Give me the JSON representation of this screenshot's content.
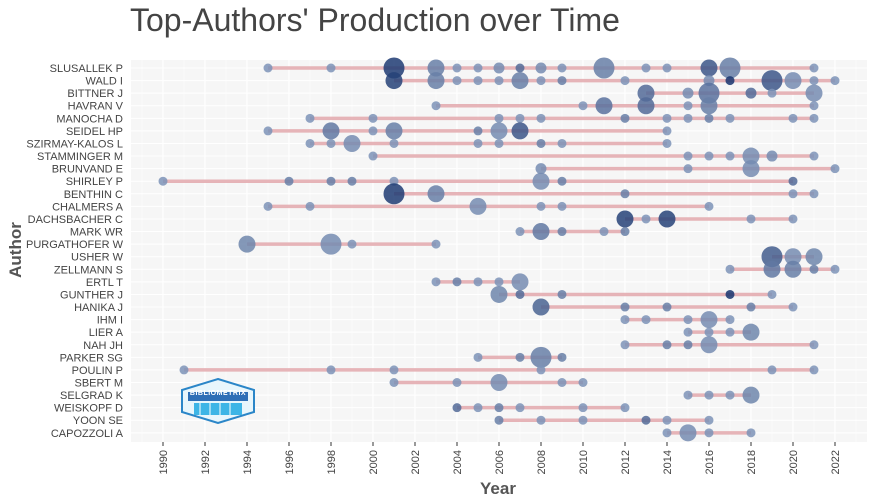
{
  "chart_data": {
    "type": "scatter",
    "title": "Top-Authors' Production over Time",
    "xlabel": "Year",
    "ylabel": "Author",
    "xlim": [
      1989,
      2023
    ],
    "xticks": [
      1990,
      1992,
      1994,
      1996,
      1998,
      2000,
      2002,
      2004,
      2006,
      2008,
      2010,
      2012,
      2014,
      2016,
      2018,
      2020,
      2022
    ],
    "grid": true,
    "line_color": "#e2a7ab",
    "point_color": "#5b7fae",
    "authors": [
      {
        "name": "SLUSALLEK P",
        "span": [
          1995,
          2021
        ],
        "points": [
          [
            1995,
            1,
            0.3
          ],
          [
            1998,
            1,
            0.3
          ],
          [
            2001,
            4,
            0.95
          ],
          [
            2003,
            3,
            0.45
          ],
          [
            2004,
            1,
            0.3
          ],
          [
            2005,
            1,
            0.3
          ],
          [
            2006,
            2,
            0.35
          ],
          [
            2007,
            1,
            0.6
          ],
          [
            2008,
            2,
            0.35
          ],
          [
            2009,
            1,
            0.3
          ],
          [
            2011,
            4,
            0.45
          ],
          [
            2013,
            1,
            0.3
          ],
          [
            2014,
            1,
            0.3
          ],
          [
            2016,
            3,
            0.75
          ],
          [
            2017,
            4,
            0.45
          ],
          [
            2021,
            1,
            0.3
          ]
        ]
      },
      {
        "name": "WALD I",
        "span": [
          2001,
          2022
        ],
        "points": [
          [
            2001,
            3,
            0.9
          ],
          [
            2003,
            3,
            0.45
          ],
          [
            2004,
            1,
            0.3
          ],
          [
            2005,
            1,
            0.3
          ],
          [
            2006,
            1,
            0.3
          ],
          [
            2007,
            3,
            0.45
          ],
          [
            2008,
            1,
            0.3
          ],
          [
            2009,
            1,
            0.45
          ],
          [
            2012,
            1,
            0.3
          ],
          [
            2016,
            2,
            0.35
          ],
          [
            2017,
            1,
            1.0
          ],
          [
            2019,
            4,
            0.75
          ],
          [
            2020,
            3,
            0.35
          ],
          [
            2021,
            1,
            0.3
          ],
          [
            2022,
            1,
            0.3
          ]
        ]
      },
      {
        "name": "BITTNER J",
        "span": [
          2013,
          2021
        ],
        "points": [
          [
            2013,
            3,
            0.6
          ],
          [
            2015,
            2,
            0.35
          ],
          [
            2016,
            4,
            0.55
          ],
          [
            2018,
            2,
            0.6
          ],
          [
            2019,
            1,
            0.3
          ],
          [
            2021,
            3,
            0.35
          ]
        ]
      },
      {
        "name": "HAVRAN V",
        "span": [
          2003,
          2021
        ],
        "points": [
          [
            2003,
            1,
            0.3
          ],
          [
            2010,
            1,
            0.3
          ],
          [
            2011,
            3,
            0.55
          ],
          [
            2013,
            3,
            0.6
          ],
          [
            2015,
            1,
            0.3
          ],
          [
            2016,
            3,
            0.45
          ],
          [
            2021,
            1,
            0.3
          ]
        ]
      },
      {
        "name": "MANOCHA D",
        "span": [
          1997,
          2021
        ],
        "points": [
          [
            1997,
            1,
            0.3
          ],
          [
            2000,
            1,
            0.3
          ],
          [
            2006,
            1,
            0.3
          ],
          [
            2007,
            1,
            0.3
          ],
          [
            2008,
            1,
            0.3
          ],
          [
            2012,
            1,
            0.45
          ],
          [
            2014,
            1,
            0.3
          ],
          [
            2015,
            1,
            0.3
          ],
          [
            2016,
            1,
            0.45
          ],
          [
            2017,
            1,
            0.3
          ],
          [
            2020,
            1,
            0.3
          ],
          [
            2021,
            1,
            0.3
          ]
        ]
      },
      {
        "name": "SEIDEL HP",
        "span": [
          1995,
          2014
        ],
        "points": [
          [
            1995,
            1,
            0.3
          ],
          [
            1998,
            3,
            0.5
          ],
          [
            2000,
            1,
            0.3
          ],
          [
            2001,
            3,
            0.45
          ],
          [
            2005,
            1,
            0.45
          ],
          [
            2006,
            3,
            0.35
          ],
          [
            2007,
            3,
            0.75
          ],
          [
            2014,
            1,
            0.3
          ]
        ]
      },
      {
        "name": "SZIRMAY-KALOS L",
        "span": [
          1997,
          2014
        ],
        "points": [
          [
            1997,
            1,
            0.3
          ],
          [
            1998,
            1,
            0.3
          ],
          [
            1999,
            3,
            0.35
          ],
          [
            2001,
            1,
            0.3
          ],
          [
            2005,
            1,
            0.3
          ],
          [
            2006,
            1,
            0.3
          ],
          [
            2008,
            1,
            0.45
          ],
          [
            2009,
            1,
            0.3
          ],
          [
            2014,
            1,
            0.3
          ]
        ]
      },
      {
        "name": "STAMMINGER M",
        "span": [
          2000,
          2021
        ],
        "points": [
          [
            2000,
            1,
            0.3
          ],
          [
            2015,
            1,
            0.3
          ],
          [
            2016,
            1,
            0.3
          ],
          [
            2017,
            1,
            0.3
          ],
          [
            2018,
            3,
            0.35
          ],
          [
            2019,
            2,
            0.35
          ],
          [
            2021,
            1,
            0.3
          ]
        ]
      },
      {
        "name": "BRUNVAND E",
        "span": [
          2008,
          2022
        ],
        "points": [
          [
            2008,
            2,
            0.35
          ],
          [
            2015,
            1,
            0.3
          ],
          [
            2018,
            3,
            0.35
          ],
          [
            2022,
            1,
            0.3
          ]
        ]
      },
      {
        "name": "SHIRLEY P",
        "span": [
          1990,
          2020
        ],
        "points": [
          [
            1990,
            1,
            0.3
          ],
          [
            1996,
            1,
            0.45
          ],
          [
            1998,
            1,
            0.45
          ],
          [
            1999,
            1,
            0.45
          ],
          [
            2001,
            1,
            0.3
          ],
          [
            2008,
            3,
            0.35
          ],
          [
            2009,
            1,
            0.45
          ],
          [
            2020,
            1,
            0.6
          ]
        ]
      },
      {
        "name": "BENTHIN C",
        "span": [
          2001,
          2021
        ],
        "points": [
          [
            2001,
            4,
            0.95
          ],
          [
            2003,
            3,
            0.45
          ],
          [
            2012,
            1,
            0.45
          ],
          [
            2020,
            1,
            0.3
          ],
          [
            2021,
            1,
            0.3
          ]
        ]
      },
      {
        "name": "CHALMERS A",
        "span": [
          1995,
          2016
        ],
        "points": [
          [
            1995,
            1,
            0.3
          ],
          [
            1997,
            1,
            0.3
          ],
          [
            2005,
            3,
            0.35
          ],
          [
            2008,
            1,
            0.3
          ],
          [
            2009,
            1,
            0.3
          ],
          [
            2016,
            1,
            0.3
          ]
        ]
      },
      {
        "name": "DACHSBACHER C",
        "span": [
          2012,
          2020
        ],
        "points": [
          [
            2012,
            3,
            0.9
          ],
          [
            2013,
            1,
            0.3
          ],
          [
            2014,
            3,
            0.9
          ],
          [
            2018,
            1,
            0.3
          ],
          [
            2020,
            1,
            0.3
          ]
        ]
      },
      {
        "name": "MARK WR",
        "span": [
          2007,
          2012
        ],
        "points": [
          [
            2007,
            1,
            0.3
          ],
          [
            2008,
            3,
            0.5
          ],
          [
            2009,
            1,
            0.45
          ],
          [
            2011,
            1,
            0.3
          ],
          [
            2012,
            1,
            0.45
          ]
        ]
      },
      {
        "name": "PURGATHOFER W",
        "span": [
          1994,
          2003
        ],
        "points": [
          [
            1994,
            3,
            0.4
          ],
          [
            1998,
            4,
            0.35
          ],
          [
            1999,
            1,
            0.3
          ],
          [
            2003,
            1,
            0.3
          ]
        ]
      },
      {
        "name": "USHER W",
        "span": [
          2019,
          2021
        ],
        "points": [
          [
            2019,
            4,
            0.7
          ],
          [
            2020,
            3,
            0.35
          ],
          [
            2021,
            3,
            0.4
          ]
        ]
      },
      {
        "name": "ZELLMANN S",
        "span": [
          2017,
          2022
        ],
        "points": [
          [
            2017,
            1,
            0.3
          ],
          [
            2019,
            3,
            0.5
          ],
          [
            2020,
            3,
            0.45
          ],
          [
            2021,
            1,
            0.45
          ],
          [
            2022,
            1,
            0.3
          ]
        ]
      },
      {
        "name": "ERTL T",
        "span": [
          2003,
          2007
        ],
        "points": [
          [
            2003,
            1,
            0.3
          ],
          [
            2004,
            1,
            0.45
          ],
          [
            2005,
            1,
            0.3
          ],
          [
            2006,
            1,
            0.3
          ],
          [
            2007,
            3,
            0.35
          ]
        ]
      },
      {
        "name": "GUNTHER J",
        "span": [
          2006,
          2019
        ],
        "points": [
          [
            2006,
            3,
            0.4
          ],
          [
            2007,
            1,
            0.6
          ],
          [
            2009,
            1,
            0.45
          ],
          [
            2017,
            1,
            1.0
          ],
          [
            2019,
            1,
            0.3
          ]
        ]
      },
      {
        "name": "HANIKA J",
        "span": [
          2008,
          2020
        ],
        "points": [
          [
            2008,
            3,
            0.65
          ],
          [
            2012,
            1,
            0.45
          ],
          [
            2014,
            1,
            0.45
          ],
          [
            2018,
            1,
            0.45
          ],
          [
            2020,
            1,
            0.3
          ]
        ]
      },
      {
        "name": "IHM I",
        "span": [
          2012,
          2017
        ],
        "points": [
          [
            2012,
            1,
            0.3
          ],
          [
            2013,
            1,
            0.3
          ],
          [
            2015,
            1,
            0.3
          ],
          [
            2016,
            3,
            0.35
          ],
          [
            2017,
            1,
            0.3
          ]
        ]
      },
      {
        "name": "LIER A",
        "span": [
          2015,
          2018
        ],
        "points": [
          [
            2015,
            1,
            0.3
          ],
          [
            2016,
            1,
            0.3
          ],
          [
            2017,
            1,
            0.3
          ],
          [
            2018,
            3,
            0.4
          ]
        ]
      },
      {
        "name": "NAH JH",
        "span": [
          2012,
          2021
        ],
        "points": [
          [
            2012,
            1,
            0.3
          ],
          [
            2014,
            1,
            0.45
          ],
          [
            2015,
            1,
            0.45
          ],
          [
            2016,
            3,
            0.35
          ],
          [
            2021,
            1,
            0.3
          ]
        ]
      },
      {
        "name": "PARKER SG",
        "span": [
          2005,
          2009
        ],
        "points": [
          [
            2005,
            1,
            0.3
          ],
          [
            2007,
            1,
            0.45
          ],
          [
            2008,
            4,
            0.45
          ],
          [
            2009,
            1,
            0.45
          ]
        ]
      },
      {
        "name": "POULIN P",
        "span": [
          1991,
          2021
        ],
        "points": [
          [
            1991,
            1,
            0.3
          ],
          [
            1998,
            1,
            0.3
          ],
          [
            2001,
            1,
            0.3
          ],
          [
            2008,
            1,
            0.3
          ],
          [
            2019,
            1,
            0.3
          ],
          [
            2021,
            1,
            0.3
          ]
        ]
      },
      {
        "name": "SBERT M",
        "span": [
          2001,
          2010
        ],
        "points": [
          [
            2001,
            1,
            0.3
          ],
          [
            2004,
            1,
            0.3
          ],
          [
            2006,
            3,
            0.35
          ],
          [
            2009,
            1,
            0.3
          ],
          [
            2010,
            1,
            0.3
          ]
        ]
      },
      {
        "name": "SELGRAD K",
        "span": [
          2015,
          2018
        ],
        "points": [
          [
            2015,
            1,
            0.3
          ],
          [
            2016,
            1,
            0.3
          ],
          [
            2017,
            1,
            0.3
          ],
          [
            2018,
            3,
            0.4
          ]
        ]
      },
      {
        "name": "WEISKOPF D",
        "span": [
          2004,
          2012
        ],
        "points": [
          [
            2004,
            1,
            0.6
          ],
          [
            2005,
            1,
            0.3
          ],
          [
            2006,
            1,
            0.45
          ],
          [
            2007,
            1,
            0.3
          ],
          [
            2010,
            1,
            0.3
          ],
          [
            2012,
            1,
            0.3
          ]
        ]
      },
      {
        "name": "YOON SE",
        "span": [
          2006,
          2016
        ],
        "points": [
          [
            2006,
            1,
            0.45
          ],
          [
            2008,
            1,
            0.3
          ],
          [
            2010,
            1,
            0.3
          ],
          [
            2013,
            1,
            0.6
          ],
          [
            2014,
            1,
            0.3
          ],
          [
            2016,
            1,
            0.3
          ]
        ]
      },
      {
        "name": "CAPOZZOLI A",
        "span": [
          2014,
          2018
        ],
        "points": [
          [
            2014,
            1,
            0.3
          ],
          [
            2015,
            3,
            0.35
          ],
          [
            2016,
            1,
            0.3
          ],
          [
            2018,
            1,
            0.3
          ]
        ]
      }
    ]
  },
  "logo": {
    "text": "BIBLIOMETRIX"
  }
}
